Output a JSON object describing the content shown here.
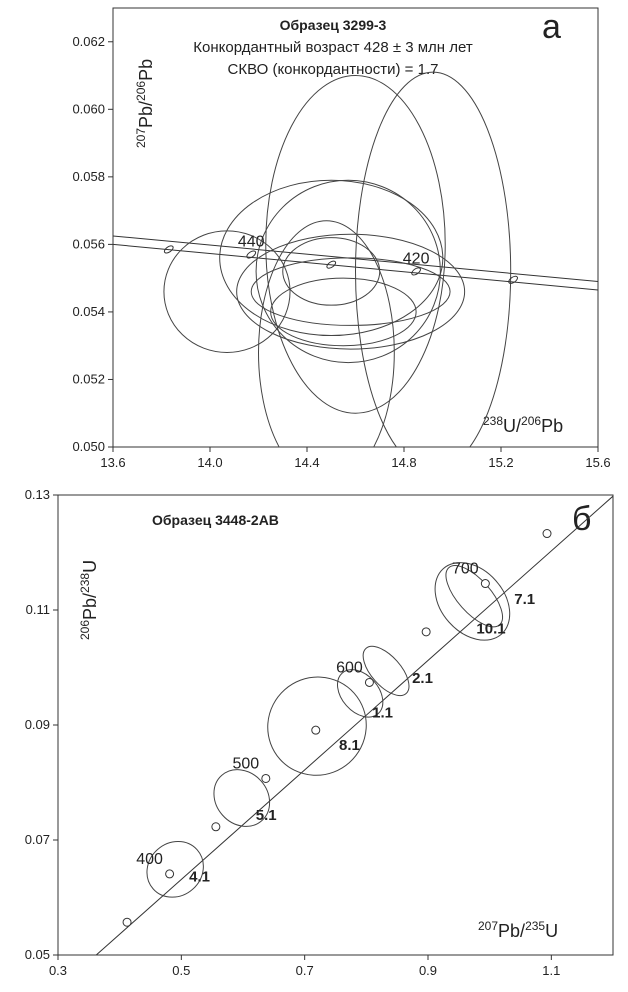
{
  "chart_data": [
    {
      "type": "scatter",
      "panel_letter": "а",
      "title": "Образец 3299-3",
      "annotations": [
        "Конкордантный возраст 428 ± 3 млн  лет",
        "СКВО (конкордантности) = 1.7"
      ],
      "xlabel": {
        "sup1": "238",
        "base1": "U/",
        "sup2": "206",
        "base2": "Pb"
      },
      "ylabel": {
        "sup1": "207",
        "base1": "Pb/",
        "sup2": "206",
        "base2": "Pb"
      },
      "xlim": [
        13.6,
        15.6
      ],
      "ylim": [
        0.05,
        0.063
      ],
      "x_ticks": [
        "13.6",
        "14.0",
        "14.4",
        "14.8",
        "15.2",
        "15.6"
      ],
      "y_ticks": [
        "0.050",
        "0.052",
        "0.054",
        "0.056",
        "0.058",
        "0.060",
        "0.062"
      ],
      "concordia_band": [
        {
          "x": 13.6,
          "y_upper": 0.05625,
          "y_lower": 0.056
        },
        {
          "x": 15.6,
          "y_upper": 0.0549,
          "y_lower": 0.05465
        }
      ],
      "age_markers": [
        {
          "x": 13.83,
          "y": 0.05585,
          "label": ""
        },
        {
          "x": 14.17,
          "y": 0.0557,
          "label": "440"
        },
        {
          "x": 14.5,
          "y": 0.0554,
          "label": ""
        },
        {
          "x": 14.85,
          "y": 0.0552,
          "label": "420"
        },
        {
          "x": 15.25,
          "y": 0.05495,
          "label": ""
        }
      ],
      "ellipses": [
        {
          "cx": 14.07,
          "cy": 0.0546,
          "rx": 0.26,
          "ry": 0.0018
        },
        {
          "cx": 14.48,
          "cy": 0.0528,
          "rx": 0.28,
          "ry": 0.0039
        },
        {
          "cx": 14.6,
          "cy": 0.056,
          "rx": 0.37,
          "ry": 0.005
        },
        {
          "cx": 14.92,
          "cy": 0.0552,
          "rx": 0.32,
          "ry": 0.0059
        },
        {
          "cx": 14.58,
          "cy": 0.0546,
          "rx": 0.47,
          "ry": 0.0017
        },
        {
          "cx": 14.5,
          "cy": 0.0556,
          "rx": 0.46,
          "ry": 0.0023
        },
        {
          "cx": 14.57,
          "cy": 0.0552,
          "rx": 0.38,
          "ry": 0.0027
        },
        {
          "cx": 14.58,
          "cy": 0.0546,
          "rx": 0.41,
          "ry": 0.001
        },
        {
          "cx": 14.5,
          "cy": 0.0552,
          "rx": 0.2,
          "ry": 0.001
        },
        {
          "cx": 14.55,
          "cy": 0.054,
          "rx": 0.3,
          "ry": 0.001
        }
      ]
    },
    {
      "type": "scatter",
      "panel_letter": "б",
      "title": "Образец 3448-2АВ",
      "xlabel": {
        "sup1": "207",
        "base1": "Pb/",
        "sup2": "235",
        "base2": "U"
      },
      "ylabel": {
        "sup1": "206",
        "base1": "Pb/",
        "sup2": "238",
        "base2": "U"
      },
      "xlim": [
        0.3,
        1.2
      ],
      "ylim": [
        0.05,
        0.13
      ],
      "x_ticks": [
        "0.3",
        "0.5",
        "0.7",
        "0.9",
        "1.1"
      ],
      "y_ticks": [
        "0.05",
        "0.07",
        "0.09",
        "0.11",
        "0.13"
      ],
      "concordia_line": [
        {
          "x": 0.362,
          "y": 0.05
        },
        {
          "x": 1.2,
          "y": 0.1298
        }
      ],
      "age_markers": [
        {
          "x": 0.412,
          "y": 0.0557,
          "label": ""
        },
        {
          "x": 0.481,
          "y": 0.0641,
          "label": "400"
        },
        {
          "x": 0.556,
          "y": 0.0723,
          "label": ""
        },
        {
          "x": 0.637,
          "y": 0.0807,
          "label": "500"
        },
        {
          "x": 0.718,
          "y": 0.0891,
          "label": ""
        },
        {
          "x": 0.805,
          "y": 0.0974,
          "label": "600"
        },
        {
          "x": 0.897,
          "y": 0.1062,
          "label": ""
        },
        {
          "x": 0.993,
          "y": 0.1146,
          "label": "700"
        },
        {
          "x": 1.093,
          "y": 0.1233,
          "label": ""
        }
      ],
      "ellipses": [
        {
          "cx": 0.49,
          "cy": 0.0649,
          "rx": 0.043,
          "ry": 0.0016,
          "label": "4.1"
        },
        {
          "cx": 0.598,
          "cy": 0.0773,
          "rx": 0.049,
          "ry": 0.0014,
          "label": "5.1"
        },
        {
          "cx": 0.72,
          "cy": 0.0898,
          "rx": 0.079,
          "ry": 0.0027,
          "label": "8.1"
        },
        {
          "cx": 0.79,
          "cy": 0.0955,
          "rx": 0.044,
          "ry": 0.001,
          "label": "1.1"
        },
        {
          "cx": 0.832,
          "cy": 0.0994,
          "rx": 0.049,
          "ry": 0.0008,
          "label": "2.1"
        },
        {
          "cx": 0.972,
          "cy": 0.1115,
          "rx": 0.071,
          "ry": 0.0017,
          "label": "10.1"
        },
        {
          "cx": 0.975,
          "cy": 0.1124,
          "rx": 0.062,
          "ry": 0.0009,
          "label": "7.1"
        }
      ]
    }
  ]
}
